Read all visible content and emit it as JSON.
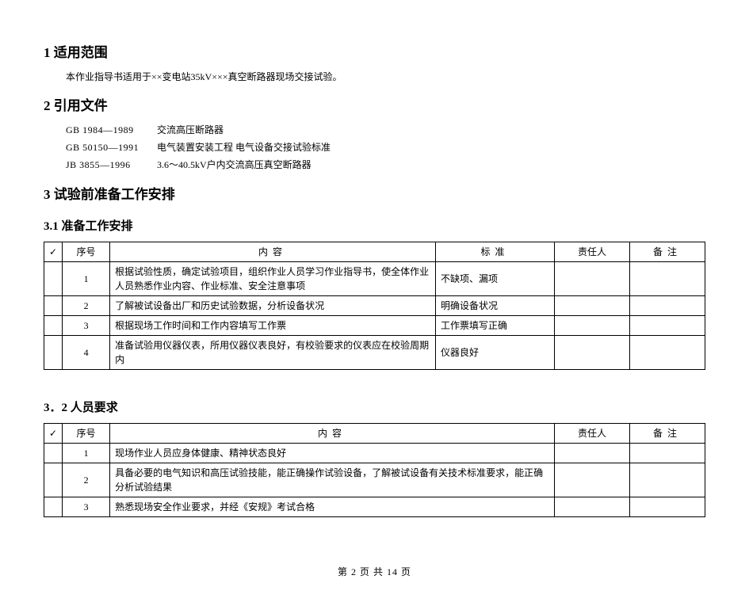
{
  "section1": {
    "heading": "1  适用范围",
    "body": "本作业指导书适用于××变电站35kV×××真空断路器现场交接试验。"
  },
  "section2": {
    "heading": "2  引用文件",
    "refs": [
      {
        "code": "GB 1984—1989",
        "desc": "交流高压断路器"
      },
      {
        "code": "GB 50150—1991",
        "desc": "电气装置安装工程   电气设备交接试验标准"
      },
      {
        "code": "JB 3855—1996",
        "desc": "3.6～40.5kV户内交流高压真空断路器"
      }
    ]
  },
  "section3": {
    "heading": "3  试验前准备工作安排"
  },
  "section3_1": {
    "heading": "3.1 准备工作安排",
    "headers": {
      "check": "✓",
      "seq": "序号",
      "content": "内容",
      "standard": "标准",
      "resp": "责任人",
      "note": "备注"
    },
    "rows": [
      {
        "seq": "1",
        "content": "根据试验性质，确定试验项目，组织作业人员学习作业指导书，使全体作业人员熟悉作业内容、作业标准、安全注意事项",
        "standard": "不缺项、漏项"
      },
      {
        "seq": "2",
        "content": "了解被试设备出厂和历史试验数据，分析设备状况",
        "standard": "明确设备状况"
      },
      {
        "seq": "3",
        "content": "根据现场工作时间和工作内容填写工作票",
        "standard": "工作票填写正确"
      },
      {
        "seq": "4",
        "content": "准备试验用仪器仪表，所用仪器仪表良好，有校验要求的仪表应在校验周期内",
        "standard": "仪器良好"
      }
    ]
  },
  "section3_2": {
    "heading": "3．2 人员要求",
    "headers": {
      "check": "✓",
      "seq": "序号",
      "content": "内容",
      "resp": "责任人",
      "note": "备注"
    },
    "rows": [
      {
        "seq": "1",
        "content": "现场作业人员应身体健康、精神状态良好"
      },
      {
        "seq": "2",
        "content": "具备必要的电气知识和高压试验技能，能正确操作试验设备，了解被试设备有关技术标准要求，能正确分析试验结果"
      },
      {
        "seq": "3",
        "content": "熟悉现场安全作业要求，并经《安规》考试合格"
      }
    ]
  },
  "footer": "第 2 页 共 14 页"
}
